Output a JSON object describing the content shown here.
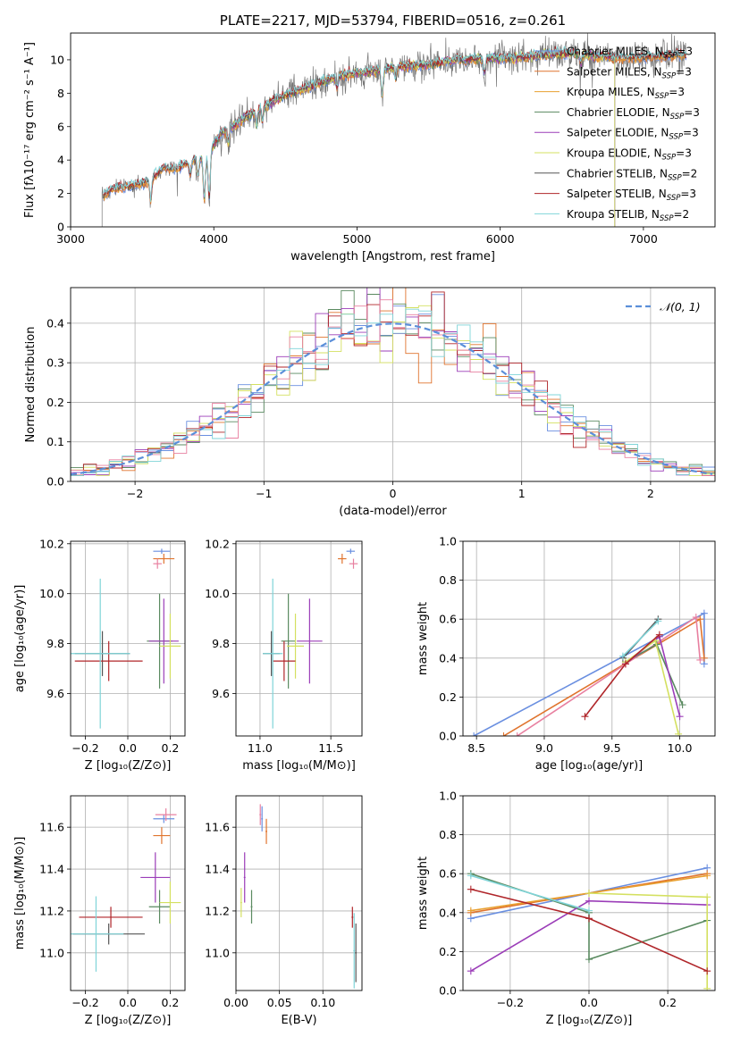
{
  "colors": {
    "chab_miles": "#6a8fe0",
    "salp_miles": "#e0742e",
    "kroupa_miles": "#e8a030",
    "chab_elodie": "#5a8a60",
    "salp_elodie": "#9b3db8",
    "kroupa_elodie": "#d4e060",
    "chab_stelib": "#555555",
    "salp_stelib": "#b0262a",
    "kroupa_stelib": "#7fd4d8",
    "extra_pink": "#e880a0",
    "gaussian": "#5b8fd9"
  },
  "chart_data": [
    {
      "type": "line",
      "title": "PLATE=2217, MJD=53794, FIBERID=0516, z=0.261",
      "xlabel": "wavelength [Angstrom, rest frame]",
      "ylabel": "Flux [fλ10⁻¹⁷ erg cm⁻² s⁻¹ A⁻¹]",
      "xlim": [
        3000,
        7500
      ],
      "ylim": [
        0,
        11.6
      ],
      "xticks": [
        "3000",
        "4000",
        "5000",
        "6000",
        "7000"
      ],
      "yticks": [
        "0",
        "2",
        "4",
        "6",
        "8",
        "10"
      ],
      "spectrum": {
        "x": [
          3220,
          3300,
          3400,
          3500,
          3550,
          3650,
          3750,
          3850,
          3950,
          4050,
          4150,
          4300,
          4500,
          4700,
          4900,
          5100,
          5300,
          5500,
          5700,
          5900,
          6100,
          6300,
          6500,
          6700,
          6900,
          7100,
          7300
        ],
        "y": [
          1.8,
          2.3,
          2.4,
          2.6,
          2.8,
          3.5,
          3.5,
          4.0,
          4.2,
          5.6,
          6.1,
          7.0,
          7.9,
          8.5,
          9.1,
          9.3,
          9.6,
          9.7,
          10.0,
          10.1,
          10.1,
          10.3,
          10.4,
          10.2,
          10.1,
          10.2,
          10.3
        ]
      },
      "legend": [
        {
          "label": "Chabrier MILES, N",
          "sub": "SSP",
          "tail": "=3",
          "color": "chab_miles"
        },
        {
          "label": "Salpeter MILES, N",
          "sub": "SSP",
          "tail": "=3",
          "color": "salp_miles"
        },
        {
          "label": "Kroupa MILES, N",
          "sub": "SSP",
          "tail": "=3",
          "color": "kroupa_miles"
        },
        {
          "label": "Chabrier ELODIE, N",
          "sub": "SSP",
          "tail": "=3",
          "color": "chab_elodie"
        },
        {
          "label": "Salpeter ELODIE, N",
          "sub": "SSP",
          "tail": "=3",
          "color": "salp_elodie"
        },
        {
          "label": "Kroupa ELODIE, N",
          "sub": "SSP",
          "tail": "=3",
          "color": "kroupa_elodie"
        },
        {
          "label": "Chabrier STELIB, N",
          "sub": "SSP",
          "tail": "=2",
          "color": "chab_stelib"
        },
        {
          "label": "Salpeter STELIB, N",
          "sub": "SSP",
          "tail": "=3",
          "color": "salp_stelib"
        },
        {
          "label": "Kroupa STELIB, N",
          "sub": "SSP",
          "tail": "=2",
          "color": "kroupa_stelib"
        }
      ]
    },
    {
      "type": "histogram",
      "xlabel": "(data-model)/error",
      "ylabel": "Normed distribution",
      "xlim": [
        -2.5,
        2.5
      ],
      "ylim": [
        0,
        0.49
      ],
      "xticks": [
        "−2",
        "−1",
        "0",
        "1",
        "2"
      ],
      "yticks": [
        "0.0",
        "0.1",
        "0.2",
        "0.3",
        "0.4"
      ],
      "legend": "𝒩(0, 1)",
      "grid": true
    },
    {
      "type": "scatter",
      "xlabel": "Z [log₁₀(Z/Z⊙)]",
      "ylabel": "age [log₁₀(age/yr)]",
      "xlim": [
        -0.27,
        0.27
      ],
      "ylim": [
        9.43,
        10.21
      ],
      "xticks": [
        "−0.2",
        "0.0",
        "0.2"
      ],
      "yticks": [
        "9.6",
        "9.8",
        "10.0",
        "10.2"
      ]
    },
    {
      "type": "scatter",
      "xlabel": "mass [log₁₀(M/M⊙)]",
      "ylabel": "",
      "xlim": [
        10.83,
        11.72
      ],
      "ylim": [
        9.43,
        10.21
      ],
      "xticks": [
        "11.0",
        "11.5"
      ],
      "yticks": [
        "9.6",
        "9.8",
        "10.0",
        "10.2"
      ]
    },
    {
      "type": "line",
      "xlabel": "age [log₁₀(age/yr)]",
      "ylabel": "mass weight",
      "xlim": [
        8.4,
        10.26
      ],
      "ylim": [
        0,
        1
      ],
      "xticks": [
        "8.5",
        "9.0",
        "9.5",
        "10.0"
      ],
      "yticks": [
        "0.0",
        "0.2",
        "0.4",
        "0.6",
        "0.8",
        "1.0"
      ],
      "series": [
        {
          "color": "chab_miles",
          "x": [
            8.48,
            10.18,
            10.18
          ],
          "y": [
            0.0,
            0.63,
            0.37
          ]
        },
        {
          "color": "salp_miles",
          "x": [
            8.7,
            10.15,
            10.18
          ],
          "y": [
            0.0,
            0.6,
            0.4
          ]
        },
        {
          "color": "extra_pink",
          "x": [
            8.8,
            10.12,
            10.15
          ],
          "y": [
            0.0,
            0.61,
            0.39
          ]
        },
        {
          "color": "chab_elodie",
          "x": [
            9.6,
            9.83,
            10.02
          ],
          "y": [
            0.38,
            0.47,
            0.16
          ]
        },
        {
          "color": "salp_elodie",
          "x": [
            9.6,
            9.85,
            10.0
          ],
          "y": [
            0.37,
            0.51,
            0.1
          ]
        },
        {
          "color": "kroupa_elodie",
          "x": [
            9.6,
            9.82,
            9.99
          ],
          "y": [
            0.38,
            0.49,
            0.01
          ]
        },
        {
          "color": "chab_stelib",
          "x": [
            9.58,
            9.84
          ],
          "y": [
            0.4,
            0.6
          ]
        },
        {
          "color": "kroupa_stelib",
          "x": [
            9.58,
            9.84
          ],
          "y": [
            0.41,
            0.59
          ]
        },
        {
          "color": "salp_stelib",
          "x": [
            9.3,
            9.6,
            9.85
          ],
          "y": [
            0.1,
            0.37,
            0.52
          ]
        }
      ]
    },
    {
      "type": "scatter",
      "xlabel": "Z [log₁₀(Z/Z⊙)]",
      "ylabel": "mass [log₁₀(M/M⊙)]",
      "xlim": [
        -0.27,
        0.27
      ],
      "ylim": [
        10.82,
        11.75
      ],
      "xticks": [
        "−0.2",
        "0.0",
        "0.2"
      ],
      "yticks": [
        "11.0",
        "11.2",
        "11.4",
        "11.6"
      ]
    },
    {
      "type": "scatter",
      "xlabel": "E(B-V)",
      "ylabel": "",
      "xlim": [
        0.0,
        0.145
      ],
      "ylim": [
        10.82,
        11.75
      ],
      "xticks": [
        "0.00",
        "0.05",
        "0.10"
      ],
      "yticks": [
        "11.0",
        "11.2",
        "11.4",
        "11.6"
      ]
    },
    {
      "type": "line",
      "xlabel": "Z [log₁₀(Z/Z⊙)]",
      "ylabel": "mass weight",
      "xlim": [
        -0.32,
        0.32
      ],
      "ylim": [
        0,
        1
      ],
      "xticks": [
        "−0.2",
        "0.0",
        "0.2"
      ],
      "yticks": [
        "0.0",
        "0.2",
        "0.4",
        "0.6",
        "0.8",
        "1.0"
      ],
      "series": [
        {
          "color": "chab_miles",
          "x": [
            -0.3,
            0.0,
            0.3
          ],
          "y": [
            0.37,
            0.5,
            0.63
          ]
        },
        {
          "color": "salp_miles",
          "x": [
            -0.3,
            0.0,
            0.3
          ],
          "y": [
            0.4,
            0.5,
            0.6
          ]
        },
        {
          "color": "kroupa_miles",
          "x": [
            -0.3,
            0.0,
            0.3
          ],
          "y": [
            0.41,
            0.5,
            0.59
          ]
        },
        {
          "color": "chab_elodie",
          "x": [
            -0.3,
            0.0,
            0.0,
            0.3
          ],
          "y": [
            0.6,
            0.4,
            0.16,
            0.36
          ]
        },
        {
          "color": "salp_elodie",
          "x": [
            -0.3,
            0.0,
            0.3
          ],
          "y": [
            0.1,
            0.46,
            0.44
          ]
        },
        {
          "color": "kroupa_elodie",
          "x": [
            0.0,
            0.3,
            0.3
          ],
          "y": [
            0.5,
            0.48,
            0.01
          ]
        },
        {
          "color": "kroupa_stelib",
          "x": [
            -0.3,
            0.0
          ],
          "y": [
            0.59,
            0.41
          ]
        },
        {
          "color": "salp_stelib",
          "x": [
            -0.3,
            0.0,
            0.3
          ],
          "y": [
            0.52,
            0.37,
            0.1
          ]
        }
      ]
    }
  ]
}
